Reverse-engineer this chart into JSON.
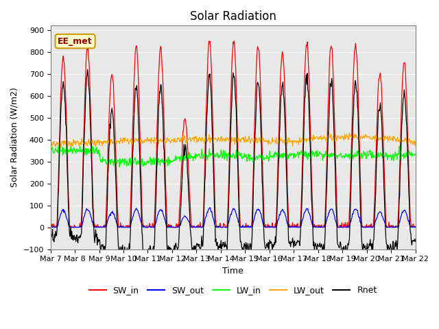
{
  "title": "Solar Radiation",
  "ylabel": "Solar Radiation (W/m2)",
  "xlabel": "Time",
  "xlabels": [
    "Mar 7",
    "Mar 8",
    "Mar 9",
    "Mar 10",
    "Mar 11",
    "Mar 12",
    "Mar 13",
    "Mar 14",
    "Mar 15",
    "Mar 16",
    "Mar 17",
    "Mar 18",
    "Mar 19",
    "Mar 20",
    "Mar 21",
    "Mar 22"
  ],
  "ylim": [
    -100,
    920
  ],
  "yticks": [
    -100,
    0,
    100,
    200,
    300,
    400,
    500,
    600,
    700,
    800,
    900
  ],
  "legend_entries": [
    "SW_in",
    "SW_out",
    "LW_in",
    "LW_out",
    "Rnet"
  ],
  "legend_colors": [
    "red",
    "blue",
    "lime",
    "orange",
    "black"
  ],
  "annotation_text": "EE_met",
  "annotation_bg": "#ffffcc",
  "annotation_border": "#cc9900",
  "annotation_text_color": "#8b0000",
  "bg_color": "#e8e8e8",
  "num_days": 15,
  "sw_peaks": [
    780,
    820,
    700,
    820,
    820,
    500,
    850,
    850,
    830,
    790,
    840,
    830,
    840,
    700,
    760
  ]
}
